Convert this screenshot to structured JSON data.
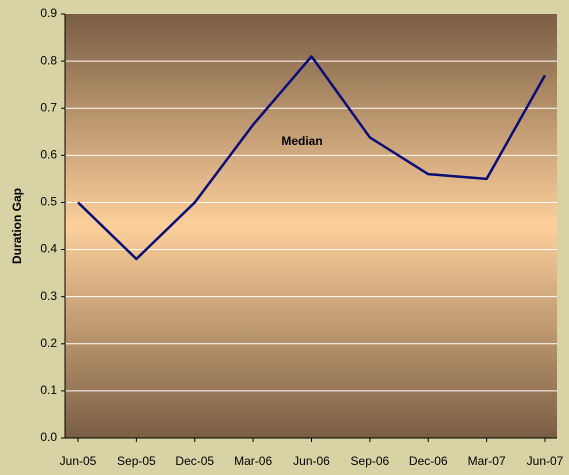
{
  "chart_data": {
    "type": "line",
    "y_label": "Duration Gap",
    "annotation": "Median",
    "categories": [
      "Jun-05",
      "Sep-05",
      "Dec-05",
      "Mar-06",
      "Jun-06",
      "Sep-06",
      "Dec-06",
      "Mar-07",
      "Jun-07"
    ],
    "series": [
      {
        "name": "Median",
        "color": "#0c0c78",
        "values": [
          0.5,
          0.38,
          0.5,
          0.665,
          0.81,
          0.638,
          0.56,
          0.55,
          0.77
        ]
      }
    ],
    "ylim": [
      0,
      0.9
    ],
    "yticks": [
      {
        "value": 0,
        "label": "0.0"
      },
      0.1,
      0.2,
      0.3,
      0.4,
      0.5,
      0.6,
      0.7,
      0.8,
      0.9
    ],
    "grid": true
  }
}
